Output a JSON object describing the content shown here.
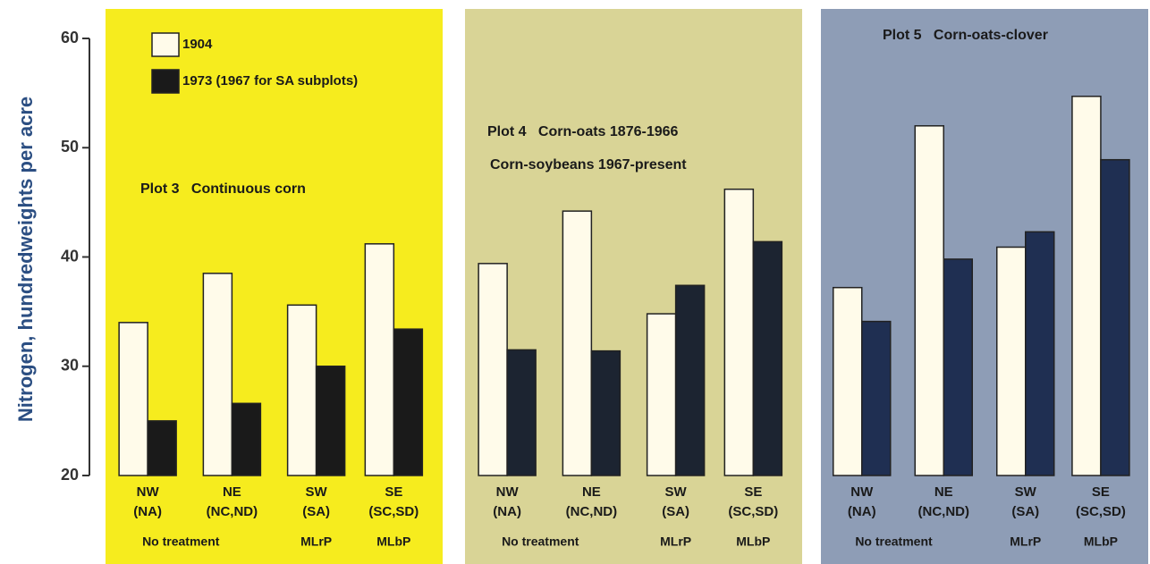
{
  "chart_data": {
    "type": "bar",
    "ylabel": "Nitrogen, hundredweights per acre",
    "ylim": [
      20,
      60
    ],
    "yticks": [
      20,
      30,
      40,
      50,
      60
    ],
    "categories": [
      "NW",
      "NE",
      "SW",
      "SE"
    ],
    "subcategories": [
      "(NA)",
      "(NC,ND)",
      "(SA)",
      "(SC,SD)"
    ],
    "treatments": [
      "No treatment",
      "MLrP",
      "MLbP"
    ],
    "legend": [
      "1904",
      "1973 (1967 for SA subplots)"
    ],
    "panels": [
      {
        "title": [
          "Plot 3   Continuous corn"
        ],
        "background": "#f6ec1e",
        "series": [
          {
            "color": "#fffbea",
            "values": [
              34,
              38.5,
              35.6,
              41.2
            ]
          },
          {
            "color": "#1a1a1a",
            "values": [
              25,
              26.6,
              30,
              33.4
            ]
          }
        ]
      },
      {
        "title": [
          "Plot 4   Corn-oats 1876-1966",
          "Corn-soybeans 1967-present"
        ],
        "background": "#d9d496",
        "series": [
          {
            "color": "#fffbea",
            "values": [
              39.4,
              44.2,
              34.8,
              46.2
            ]
          },
          {
            "color": "#1c2431",
            "values": [
              31.5,
              31.4,
              37.4,
              41.4
            ]
          }
        ]
      },
      {
        "title": [
          "Plot 5   Corn-oats-clover"
        ],
        "background": "#8e9db6",
        "series": [
          {
            "color": "#fffbea",
            "values": [
              37.2,
              52,
              40.9,
              54.7
            ]
          },
          {
            "color": "#1f2f52",
            "values": [
              34.1,
              39.8,
              42.3,
              48.9
            ]
          }
        ]
      }
    ]
  }
}
